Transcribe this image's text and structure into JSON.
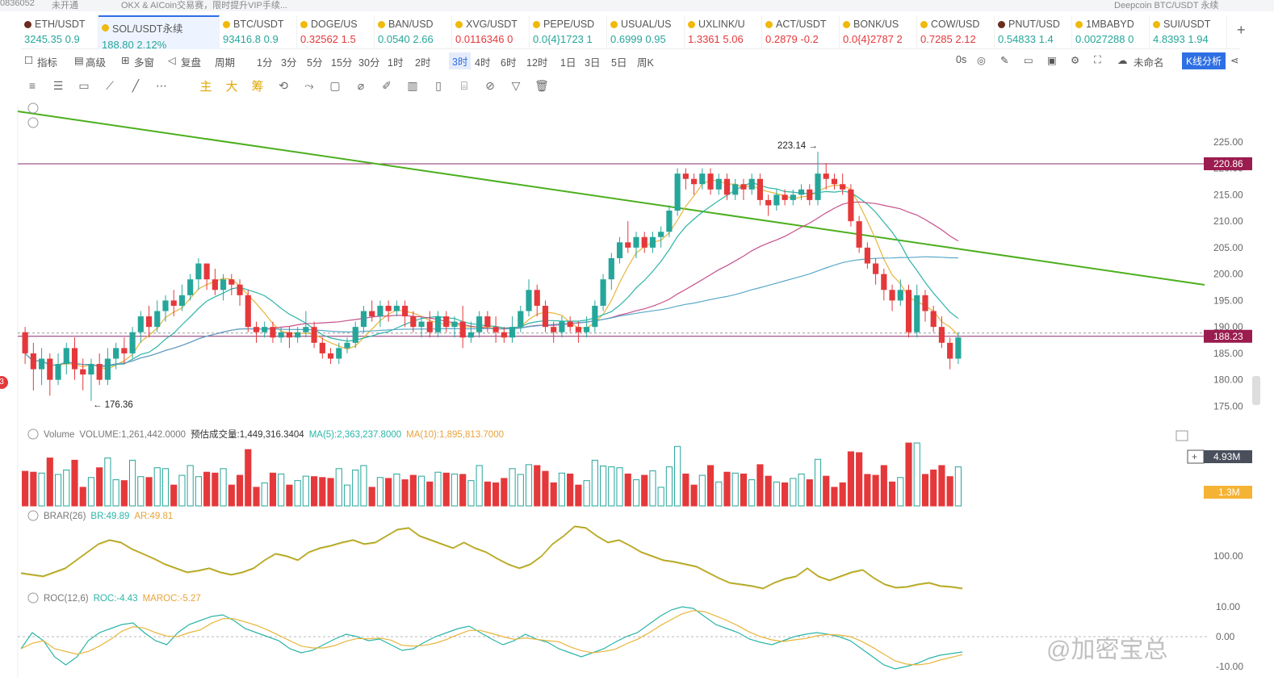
{
  "top": {
    "account": "0836052",
    "status": "未开通",
    "notice": "OKX & AICoin交易赛，限时提升VIP手续...",
    "search": "Deepcoin BTC/USDT 永续"
  },
  "tickers": [
    {
      "sym": "ETH/USDT",
      "px": "3245.35",
      "chg": "0.9",
      "dir": "up",
      "dot": "#6b2d1f"
    },
    {
      "sym": "SOL/USDT永续",
      "px": "188.80",
      "chg": "2.12%",
      "dir": "up",
      "dot": "#f0b90b",
      "active": true
    },
    {
      "sym": "BTC/USDT",
      "px": "93416.8",
      "chg": "0.9",
      "dir": "up",
      "dot": "#f0b90b"
    },
    {
      "sym": "DOGE/US",
      "px": "0.32562",
      "chg": "1.5",
      "dir": "dn",
      "dot": "#f0b90b"
    },
    {
      "sym": "BAN/USD",
      "px": "0.0540",
      "chg": "2.66",
      "dir": "up",
      "dot": "#f0b90b"
    },
    {
      "sym": "XVG/USDT",
      "px": "0.0116346",
      "chg": "0",
      "dir": "dn",
      "dot": "#f0b90b"
    },
    {
      "sym": "PEPE/USD",
      "px": "0.0{4}1723",
      "chg": "1",
      "dir": "up",
      "dot": "#f0b90b"
    },
    {
      "sym": "USUAL/US",
      "px": "0.6999",
      "chg": "0.95",
      "dir": "up",
      "dot": "#f0b90b"
    },
    {
      "sym": "UXLINK/U",
      "px": "1.3361",
      "chg": "5.06",
      "dir": "dn",
      "dot": "#f0b90b"
    },
    {
      "sym": "ACT/USDT",
      "px": "0.2879",
      "chg": "-0.2",
      "dir": "dn",
      "dot": "#f0b90b"
    },
    {
      "sym": "BONK/US",
      "px": "0.0{4}2787",
      "chg": "2",
      "dir": "dn",
      "dot": "#f0b90b"
    },
    {
      "sym": "COW/USD",
      "px": "0.7285",
      "chg": "2.12",
      "dir": "dn",
      "dot": "#f0b90b"
    },
    {
      "sym": "PNUT/USD",
      "px": "0.54833",
      "chg": "1.4",
      "dir": "up",
      "dot": "#6b2d1f"
    },
    {
      "sym": "1MBABYD",
      "px": "0.0027288",
      "chg": "0",
      "dir": "up",
      "dot": "#f0b90b"
    },
    {
      "sym": "SUI/USDT",
      "px": "4.8393",
      "chg": "1.94",
      "dir": "up",
      "dot": "#f0b90b"
    }
  ],
  "toolbar": {
    "items": [
      "指标",
      "高级",
      "多窗",
      "复盘",
      "周期",
      "1分",
      "3分",
      "5分",
      "15分",
      "30分",
      "1时",
      "2时",
      "3时",
      "4时",
      "6时",
      "12时",
      "1日",
      "3日",
      "5日",
      "周K"
    ],
    "selected": "3时",
    "right": [
      "0s",
      "未命名",
      "K线分析"
    ]
  },
  "drawtools": {
    "indicators": [
      "主",
      "大",
      "筹"
    ]
  },
  "chart_data": {
    "type": "candlestick",
    "price_axis": {
      "min": 175,
      "max": 225,
      "ticks": [
        225,
        220,
        215,
        210,
        205,
        200,
        195,
        190,
        185,
        180,
        175
      ]
    },
    "hline_price": 220.86,
    "last_price": 188.23,
    "high_label": "223.14",
    "low_label": "176.36",
    "candles": [
      [
        189,
        185,
        190,
        183
      ],
      [
        185,
        182,
        187,
        178
      ],
      [
        182,
        184,
        186,
        179
      ],
      [
        184,
        180,
        185,
        177
      ],
      [
        180,
        183,
        185,
        179
      ],
      [
        183,
        186,
        187,
        181
      ],
      [
        186,
        182,
        188,
        180
      ],
      [
        182,
        181,
        184,
        178
      ],
      [
        181,
        183,
        184,
        176
      ],
      [
        183,
        180,
        185,
        179
      ],
      [
        180,
        184,
        186,
        179
      ],
      [
        184,
        186,
        187,
        182
      ],
      [
        186,
        185,
        188,
        183
      ],
      [
        185,
        189,
        190,
        184
      ],
      [
        189,
        192,
        193,
        187
      ],
      [
        192,
        190,
        194,
        188
      ],
      [
        190,
        193,
        195,
        189
      ],
      [
        193,
        195,
        196,
        191
      ],
      [
        195,
        194,
        197,
        192
      ],
      [
        194,
        196,
        198,
        193
      ],
      [
        196,
        199,
        200,
        195
      ],
      [
        199,
        202,
        203,
        197
      ],
      [
        202,
        199,
        202,
        197
      ],
      [
        199,
        197,
        201,
        196
      ],
      [
        197,
        199,
        200,
        195
      ],
      [
        199,
        198,
        200,
        196
      ],
      [
        198,
        196,
        199,
        194
      ],
      [
        196,
        190,
        197,
        189
      ],
      [
        190,
        189,
        191,
        187
      ],
      [
        189,
        190,
        191,
        188
      ],
      [
        190,
        188,
        191,
        187
      ],
      [
        188,
        189,
        190,
        187
      ],
      [
        189,
        188,
        190,
        186
      ],
      [
        188,
        189,
        190,
        187
      ],
      [
        189,
        190,
        193,
        188
      ],
      [
        190,
        187,
        191,
        186
      ],
      [
        187,
        185,
        188,
        184
      ],
      [
        185,
        184,
        186,
        183
      ],
      [
        184,
        186,
        187,
        183
      ],
      [
        186,
        187,
        188,
        185
      ],
      [
        187,
        190,
        191,
        186
      ],
      [
        190,
        193,
        194,
        189
      ],
      [
        193,
        192,
        195,
        191
      ],
      [
        192,
        194,
        195,
        190
      ],
      [
        194,
        193,
        195,
        191
      ],
      [
        193,
        194,
        195,
        192
      ],
      [
        194,
        192,
        195,
        190
      ],
      [
        192,
        190,
        193,
        189
      ],
      [
        190,
        191,
        192,
        188
      ],
      [
        191,
        189,
        193,
        188
      ],
      [
        189,
        192,
        193,
        188
      ],
      [
        192,
        190,
        193,
        189
      ],
      [
        190,
        191,
        192,
        188
      ],
      [
        191,
        188,
        194,
        186
      ],
      [
        188,
        189,
        191,
        187
      ],
      [
        189,
        192,
        193,
        188
      ],
      [
        192,
        190,
        193,
        189
      ],
      [
        190,
        189,
        192,
        187
      ],
      [
        189,
        188,
        190,
        187
      ],
      [
        188,
        190,
        192,
        187
      ],
      [
        190,
        193,
        194,
        189
      ],
      [
        193,
        197,
        199,
        192
      ],
      [
        197,
        194,
        198,
        192
      ],
      [
        194,
        190,
        195,
        189
      ],
      [
        190,
        189,
        191,
        187
      ],
      [
        189,
        191,
        192,
        188
      ],
      [
        191,
        190,
        192,
        189
      ],
      [
        190,
        189,
        191,
        187
      ],
      [
        189,
        190,
        192,
        188
      ],
      [
        190,
        194,
        195,
        189
      ],
      [
        194,
        199,
        200,
        193
      ],
      [
        199,
        203,
        204,
        197
      ],
      [
        203,
        206,
        207,
        202
      ],
      [
        206,
        205,
        210,
        204
      ],
      [
        205,
        207,
        208,
        203
      ],
      [
        207,
        205,
        208,
        204
      ],
      [
        205,
        207,
        208,
        204
      ],
      [
        207,
        208,
        209,
        205
      ],
      [
        208,
        212,
        213,
        207
      ],
      [
        212,
        219,
        220,
        211
      ],
      [
        219,
        218,
        220,
        216
      ],
      [
        218,
        217,
        219,
        215
      ],
      [
        217,
        219,
        220,
        216
      ],
      [
        219,
        216,
        220,
        215
      ],
      [
        216,
        218,
        219,
        215
      ],
      [
        218,
        215,
        219,
        214
      ],
      [
        215,
        217,
        218,
        214
      ],
      [
        217,
        216,
        218,
        214
      ],
      [
        216,
        218,
        219,
        215
      ],
      [
        218,
        214,
        219,
        213
      ],
      [
        214,
        213,
        215,
        211
      ],
      [
        213,
        215,
        216,
        212
      ],
      [
        215,
        214,
        216,
        213
      ],
      [
        214,
        215,
        216,
        213
      ],
      [
        215,
        216,
        217,
        214
      ],
      [
        216,
        214,
        217,
        213
      ],
      [
        214,
        219,
        223.14,
        213
      ],
      [
        219,
        218,
        221,
        216
      ],
      [
        218,
        217,
        219,
        216
      ],
      [
        217,
        216,
        219,
        215
      ],
      [
        216,
        210,
        217,
        209
      ],
      [
        210,
        205,
        211,
        204
      ],
      [
        205,
        202,
        206,
        201
      ],
      [
        202,
        200,
        203,
        198
      ],
      [
        200,
        197,
        201,
        195
      ],
      [
        197,
        195,
        198,
        193
      ],
      [
        195,
        197,
        199,
        194
      ],
      [
        197,
        189,
        198,
        188
      ],
      [
        189,
        196,
        198,
        188
      ],
      [
        196,
        193,
        197,
        191
      ],
      [
        193,
        190,
        194,
        189
      ],
      [
        190,
        187,
        192,
        186
      ],
      [
        187,
        184,
        188,
        182
      ],
      [
        184,
        188,
        189,
        183
      ]
    ],
    "volume": {
      "label": "Volume",
      "vol_label": "VOLUME:1,261,442.0000",
      "est_label": "预估成交量:1,449,316.3404",
      "ma5": "MA(5):2,363,237.8000",
      "ma10": "MA(10):1,895,813.7000",
      "axis_label": "4.93M",
      "ma_badge": "1.3M"
    },
    "brar": {
      "label": "BRAR(26)",
      "br": "BR:49.89",
      "ar": "AR:49.81",
      "tick": "100.00"
    },
    "roc": {
      "label": "ROC(12,6)",
      "roc": "ROC:-4.43",
      "maroc": "MAROC:-5.27",
      "ticks": [
        "10.00",
        "0.00",
        "-10.00"
      ]
    }
  },
  "watermark": "@加密宝总"
}
